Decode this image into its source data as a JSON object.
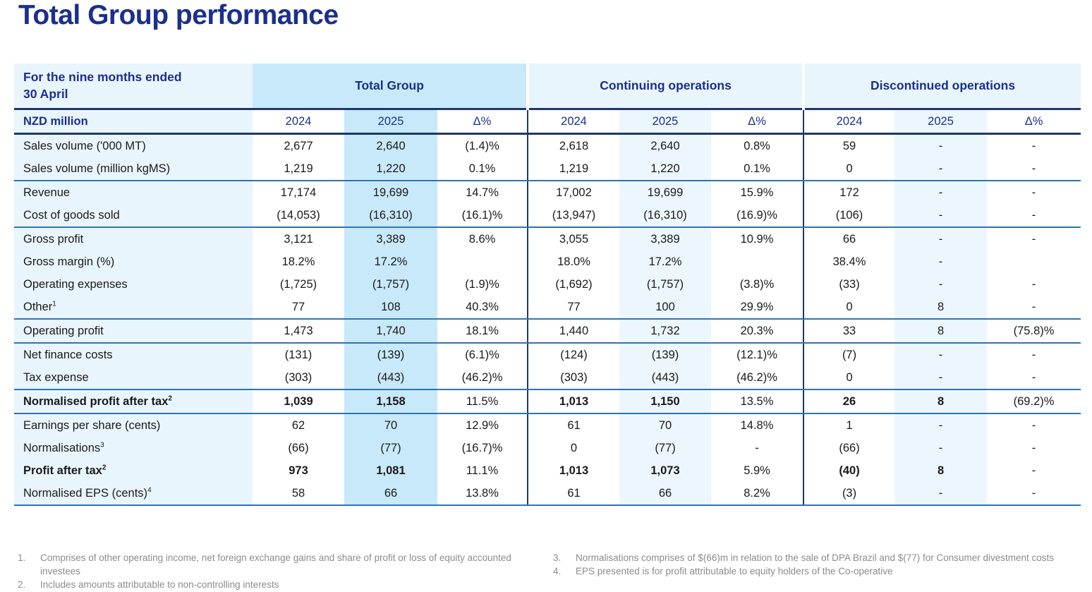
{
  "colors": {
    "navy": "#1b2f8c",
    "rule_dark": "#1f3864",
    "rule_mid": "#2e74b5",
    "fill_strong": "#c8e9fa",
    "fill_pale": "#e9f5fc",
    "fill_tint": "#ecf6fd",
    "text_dark": "#1a1a1a",
    "text_gray": "#8c8c8c"
  },
  "title": "Total Group performance",
  "table": {
    "period_line1": "For the nine months ended",
    "period_line2": "30 April",
    "unit_label": "NZD million",
    "sections": [
      "Total Group",
      "Continuing operations",
      "Discontinued operations"
    ],
    "year_headers": [
      "2024",
      "2025",
      "Δ%"
    ],
    "rows": [
      {
        "label": "Sales volume ('000 MT)",
        "sup": "",
        "bold": false,
        "group_end": false,
        "values": [
          "2,677",
          "2,640",
          "(1.4)%",
          "2,618",
          "2,640",
          "0.8%",
          "59",
          "-",
          "-"
        ]
      },
      {
        "label": "Sales volume (million kgMS)",
        "sup": "",
        "bold": false,
        "group_end": true,
        "values": [
          "1,219",
          "1,220",
          "0.1%",
          "1,219",
          "1,220",
          "0.1%",
          "0",
          "-",
          "-"
        ]
      },
      {
        "label": "Revenue",
        "sup": "",
        "bold": false,
        "group_end": false,
        "values": [
          "17,174",
          "19,699",
          "14.7%",
          "17,002",
          "19,699",
          "15.9%",
          "172",
          "-",
          "-"
        ]
      },
      {
        "label": "Cost of goods sold",
        "sup": "",
        "bold": false,
        "group_end": true,
        "values": [
          "(14,053)",
          "(16,310)",
          "(16.1)%",
          "(13,947)",
          "(16,310)",
          "(16.9)%",
          "(106)",
          "-",
          "-"
        ]
      },
      {
        "label": "Gross profit",
        "sup": "",
        "bold": false,
        "group_end": false,
        "values": [
          "3,121",
          "3,389",
          "8.6%",
          "3,055",
          "3,389",
          "10.9%",
          "66",
          "-",
          "-"
        ]
      },
      {
        "label": "Gross margin (%)",
        "sup": "",
        "bold": false,
        "group_end": false,
        "values": [
          "18.2%",
          "17.2%",
          "",
          "18.0%",
          "17.2%",
          "",
          "38.4%",
          "-",
          ""
        ]
      },
      {
        "label": "Operating expenses",
        "sup": "",
        "bold": false,
        "group_end": false,
        "values": [
          "(1,725)",
          "(1,757)",
          "(1.9)%",
          "(1,692)",
          "(1,757)",
          "(3.8)%",
          "(33)",
          "-",
          "-"
        ]
      },
      {
        "label": "Other",
        "sup": "1",
        "bold": false,
        "group_end": true,
        "values": [
          "77",
          "108",
          "40.3%",
          "77",
          "100",
          "29.9%",
          "0",
          "8",
          "-"
        ]
      },
      {
        "label": "Operating profit",
        "sup": "",
        "bold": false,
        "group_end": true,
        "values": [
          "1,473",
          "1,740",
          "18.1%",
          "1,440",
          "1,732",
          "20.3%",
          "33",
          "8",
          "(75.8)%"
        ]
      },
      {
        "label": "Net finance costs",
        "sup": "",
        "bold": false,
        "group_end": false,
        "values": [
          "(131)",
          "(139)",
          "(6.1)%",
          "(124)",
          "(139)",
          "(12.1)%",
          "(7)",
          "-",
          "-"
        ]
      },
      {
        "label": "Tax expense",
        "sup": "",
        "bold": false,
        "group_end": true,
        "values": [
          "(303)",
          "(443)",
          "(46.2)%",
          "(303)",
          "(443)",
          "(46.2)%",
          "0",
          "-",
          "-"
        ]
      },
      {
        "label": "Normalised profit after tax",
        "sup": "2",
        "bold": true,
        "group_end": true,
        "values": [
          "1,039",
          "1,158",
          "11.5%",
          "1,013",
          "1,150",
          "13.5%",
          "26",
          "8",
          "(69.2)%"
        ]
      },
      {
        "label": "Earnings per share (cents)",
        "sup": "",
        "bold": false,
        "group_end": false,
        "values": [
          "62",
          "70",
          "12.9%",
          "61",
          "70",
          "14.8%",
          "1",
          "-",
          "-"
        ]
      },
      {
        "label": "Normalisations",
        "sup": "3",
        "bold": false,
        "group_end": false,
        "values": [
          "(66)",
          "(77)",
          "(16.7)%",
          "0",
          "(77)",
          "-",
          "(66)",
          "-",
          "-"
        ]
      },
      {
        "label": "Profit after tax",
        "sup": "2",
        "bold": true,
        "group_end": false,
        "values": [
          "973",
          "1,081",
          "11.1%",
          "1,013",
          "1,073",
          "5.9%",
          "(40)",
          "8",
          "-"
        ]
      },
      {
        "label": "Normalised EPS (cents)",
        "sup": "4",
        "bold": false,
        "group_end": true,
        "values": [
          "58",
          "66",
          "13.8%",
          "61",
          "66",
          "8.2%",
          "(3)",
          "-",
          "-"
        ]
      }
    ]
  },
  "footnotes": {
    "left": [
      {
        "num": "1.",
        "text": "Comprises of other operating income, net foreign exchange gains and share of profit or loss of equity accounted investees"
      },
      {
        "num": "2.",
        "text": "Includes amounts attributable to non-controlling interests"
      }
    ],
    "right": [
      {
        "num": "3.",
        "text": "Normalisations comprises of $(66)m in relation to the sale of DPA Brazil and $(77) for Consumer divestment costs"
      },
      {
        "num": "4.",
        "text": "EPS presented is for profit attributable to equity holders of the Co-operative"
      }
    ]
  }
}
